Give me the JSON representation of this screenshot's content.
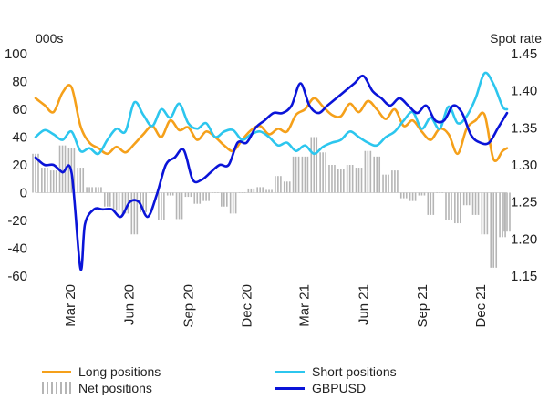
{
  "chart_data": {
    "type": "line",
    "left_axis_label": "000s",
    "right_axis_label": "Spot rate",
    "y_left": {
      "min": -60,
      "max": 100,
      "ticks": [
        100,
        80,
        60,
        40,
        20,
        0,
        -20,
        -40,
        -60
      ]
    },
    "y_right": {
      "min": 1.15,
      "max": 1.45,
      "ticks": [
        "1.45",
        "1.40",
        "1.35",
        "1.30",
        "1.25",
        "1.20",
        "1.15"
      ]
    },
    "x_range": [
      "2020-01-07",
      "2022-01-11"
    ],
    "x_ticks": [
      {
        "label": "Mar 20",
        "date": "2020-03-01"
      },
      {
        "label": "Jun 20",
        "date": "2020-06-01"
      },
      {
        "label": "Sep 20",
        "date": "2020-09-01"
      },
      {
        "label": "Dec 20",
        "date": "2020-12-01"
      },
      {
        "label": "Mar 21",
        "date": "2021-03-01"
      },
      {
        "label": "Jun 21",
        "date": "2021-06-01"
      },
      {
        "label": "Sep 21",
        "date": "2021-09-01"
      },
      {
        "label": "Dec 21",
        "date": "2021-12-01"
      }
    ],
    "series": [
      {
        "name": "Long positions",
        "type": "line",
        "axis": "left",
        "color": "#f5a01a",
        "x": [
          "2020-01-07",
          "2020-01-21",
          "2020-02-04",
          "2020-02-18",
          "2020-03-03",
          "2020-03-17",
          "2020-03-31",
          "2020-04-14",
          "2020-04-28",
          "2020-05-12",
          "2020-05-26",
          "2020-06-09",
          "2020-06-23",
          "2020-07-07",
          "2020-07-21",
          "2020-08-04",
          "2020-08-18",
          "2020-09-01",
          "2020-09-15",
          "2020-09-29",
          "2020-10-13",
          "2020-10-27",
          "2020-11-10",
          "2020-11-24",
          "2020-12-08",
          "2020-12-22",
          "2021-01-05",
          "2021-01-19",
          "2021-02-02",
          "2021-02-16",
          "2021-03-02",
          "2021-03-16",
          "2021-03-30",
          "2021-04-13",
          "2021-04-27",
          "2021-05-11",
          "2021-05-25",
          "2021-06-08",
          "2021-06-22",
          "2021-07-06",
          "2021-07-20",
          "2021-08-03",
          "2021-08-17",
          "2021-08-31",
          "2021-09-14",
          "2021-09-28",
          "2021-10-12",
          "2021-10-26",
          "2021-11-09",
          "2021-11-23",
          "2021-12-07",
          "2021-12-21",
          "2022-01-04",
          "2022-01-11"
        ],
        "values": [
          68,
          63,
          58,
          72,
          76,
          48,
          36,
          32,
          28,
          33,
          29,
          35,
          42,
          48,
          40,
          52,
          45,
          47,
          38,
          44,
          40,
          34,
          30,
          38,
          45,
          48,
          42,
          46,
          44,
          56,
          60,
          68,
          62,
          56,
          55,
          64,
          58,
          66,
          60,
          53,
          60,
          48,
          52,
          44,
          38,
          46,
          42,
          28,
          46,
          52,
          56,
          24,
          30,
          32
        ]
      },
      {
        "name": "Short positions",
        "type": "line",
        "axis": "left",
        "color": "#2cc6ee",
        "x": [
          "2020-01-07",
          "2020-01-21",
          "2020-02-04",
          "2020-02-18",
          "2020-03-03",
          "2020-03-17",
          "2020-03-31",
          "2020-04-14",
          "2020-04-28",
          "2020-05-12",
          "2020-05-26",
          "2020-06-09",
          "2020-06-23",
          "2020-07-07",
          "2020-07-21",
          "2020-08-04",
          "2020-08-18",
          "2020-09-01",
          "2020-09-15",
          "2020-09-29",
          "2020-10-13",
          "2020-10-27",
          "2020-11-10",
          "2020-11-24",
          "2020-12-08",
          "2020-12-22",
          "2021-01-05",
          "2021-01-19",
          "2021-02-02",
          "2021-02-16",
          "2021-03-02",
          "2021-03-16",
          "2021-03-30",
          "2021-04-13",
          "2021-04-27",
          "2021-05-11",
          "2021-05-25",
          "2021-06-08",
          "2021-06-22",
          "2021-07-06",
          "2021-07-20",
          "2021-08-03",
          "2021-08-17",
          "2021-08-31",
          "2021-09-14",
          "2021-09-28",
          "2021-10-12",
          "2021-10-26",
          "2021-11-09",
          "2021-11-23",
          "2021-12-07",
          "2021-12-21",
          "2022-01-04",
          "2022-01-11"
        ],
        "values": [
          40,
          45,
          42,
          38,
          44,
          30,
          32,
          28,
          38,
          46,
          44,
          65,
          56,
          48,
          60,
          54,
          64,
          50,
          46,
          50,
          40,
          44,
          45,
          38,
          42,
          44,
          40,
          34,
          36,
          30,
          34,
          28,
          33,
          36,
          38,
          44,
          40,
          36,
          34,
          40,
          44,
          52,
          58,
          46,
          54,
          46,
          62,
          50,
          55,
          68,
          86,
          78,
          62,
          60
        ]
      },
      {
        "name": "Net positions",
        "type": "bar",
        "axis": "left",
        "color": "#b5b5b5",
        "x": [
          "2020-01-07",
          "2020-01-21",
          "2020-02-04",
          "2020-02-18",
          "2020-03-03",
          "2020-03-17",
          "2020-03-31",
          "2020-04-14",
          "2020-04-28",
          "2020-05-12",
          "2020-05-26",
          "2020-06-09",
          "2020-06-23",
          "2020-07-07",
          "2020-07-21",
          "2020-08-04",
          "2020-08-18",
          "2020-09-01",
          "2020-09-15",
          "2020-09-29",
          "2020-10-13",
          "2020-10-27",
          "2020-11-10",
          "2020-11-24",
          "2020-12-08",
          "2020-12-22",
          "2021-01-05",
          "2021-01-19",
          "2021-02-02",
          "2021-02-16",
          "2021-03-02",
          "2021-03-16",
          "2021-03-30",
          "2021-04-13",
          "2021-04-27",
          "2021-05-11",
          "2021-05-25",
          "2021-06-08",
          "2021-06-22",
          "2021-07-06",
          "2021-07-20",
          "2021-08-03",
          "2021-08-17",
          "2021-08-31",
          "2021-09-14",
          "2021-09-28",
          "2021-10-12",
          "2021-10-26",
          "2021-11-09",
          "2021-11-23",
          "2021-12-07",
          "2021-12-21",
          "2022-01-04",
          "2022-01-11"
        ],
        "values": [
          28,
          18,
          16,
          34,
          32,
          18,
          4,
          4,
          -10,
          -13,
          -15,
          -30,
          -14,
          0,
          -20,
          -2,
          -19,
          -3,
          -8,
          -6,
          0,
          -10,
          -15,
          0,
          3,
          4,
          2,
          12,
          8,
          26,
          26,
          40,
          29,
          20,
          17,
          20,
          18,
          30,
          26,
          13,
          16,
          -4,
          -6,
          -2,
          -16,
          0,
          -20,
          -22,
          -9,
          -16,
          -30,
          -54,
          -32,
          -28
        ]
      },
      {
        "name": "GBPUSD",
        "type": "line",
        "axis": "right",
        "color": "#0a14d8",
        "x": [
          "2020-01-07",
          "2020-01-21",
          "2020-02-04",
          "2020-02-18",
          "2020-03-03",
          "2020-03-17",
          "2020-03-24",
          "2020-04-07",
          "2020-04-21",
          "2020-05-05",
          "2020-05-19",
          "2020-06-02",
          "2020-06-16",
          "2020-06-30",
          "2020-07-14",
          "2020-07-28",
          "2020-08-11",
          "2020-08-25",
          "2020-09-08",
          "2020-09-22",
          "2020-10-06",
          "2020-10-20",
          "2020-11-03",
          "2020-11-17",
          "2020-12-01",
          "2020-12-15",
          "2020-12-29",
          "2021-01-12",
          "2021-01-26",
          "2021-02-09",
          "2021-02-23",
          "2021-03-09",
          "2021-03-23",
          "2021-04-06",
          "2021-04-20",
          "2021-05-04",
          "2021-05-18",
          "2021-06-01",
          "2021-06-15",
          "2021-06-29",
          "2021-07-13",
          "2021-07-27",
          "2021-08-10",
          "2021-08-24",
          "2021-09-07",
          "2021-09-21",
          "2021-10-05",
          "2021-10-19",
          "2021-11-02",
          "2021-11-16",
          "2021-11-30",
          "2021-12-14",
          "2021-12-28",
          "2022-01-11"
        ],
        "values": [
          1.31,
          1.3,
          1.3,
          1.29,
          1.29,
          1.16,
          1.22,
          1.24,
          1.24,
          1.24,
          1.23,
          1.25,
          1.25,
          1.23,
          1.26,
          1.3,
          1.31,
          1.32,
          1.28,
          1.28,
          1.29,
          1.3,
          1.3,
          1.33,
          1.33,
          1.35,
          1.36,
          1.37,
          1.37,
          1.38,
          1.41,
          1.38,
          1.37,
          1.38,
          1.39,
          1.4,
          1.41,
          1.42,
          1.4,
          1.39,
          1.38,
          1.39,
          1.38,
          1.37,
          1.38,
          1.36,
          1.36,
          1.38,
          1.37,
          1.34,
          1.33,
          1.33,
          1.35,
          1.37
        ]
      }
    ],
    "legend": {
      "placement": "bottom",
      "columns": 2
    }
  }
}
